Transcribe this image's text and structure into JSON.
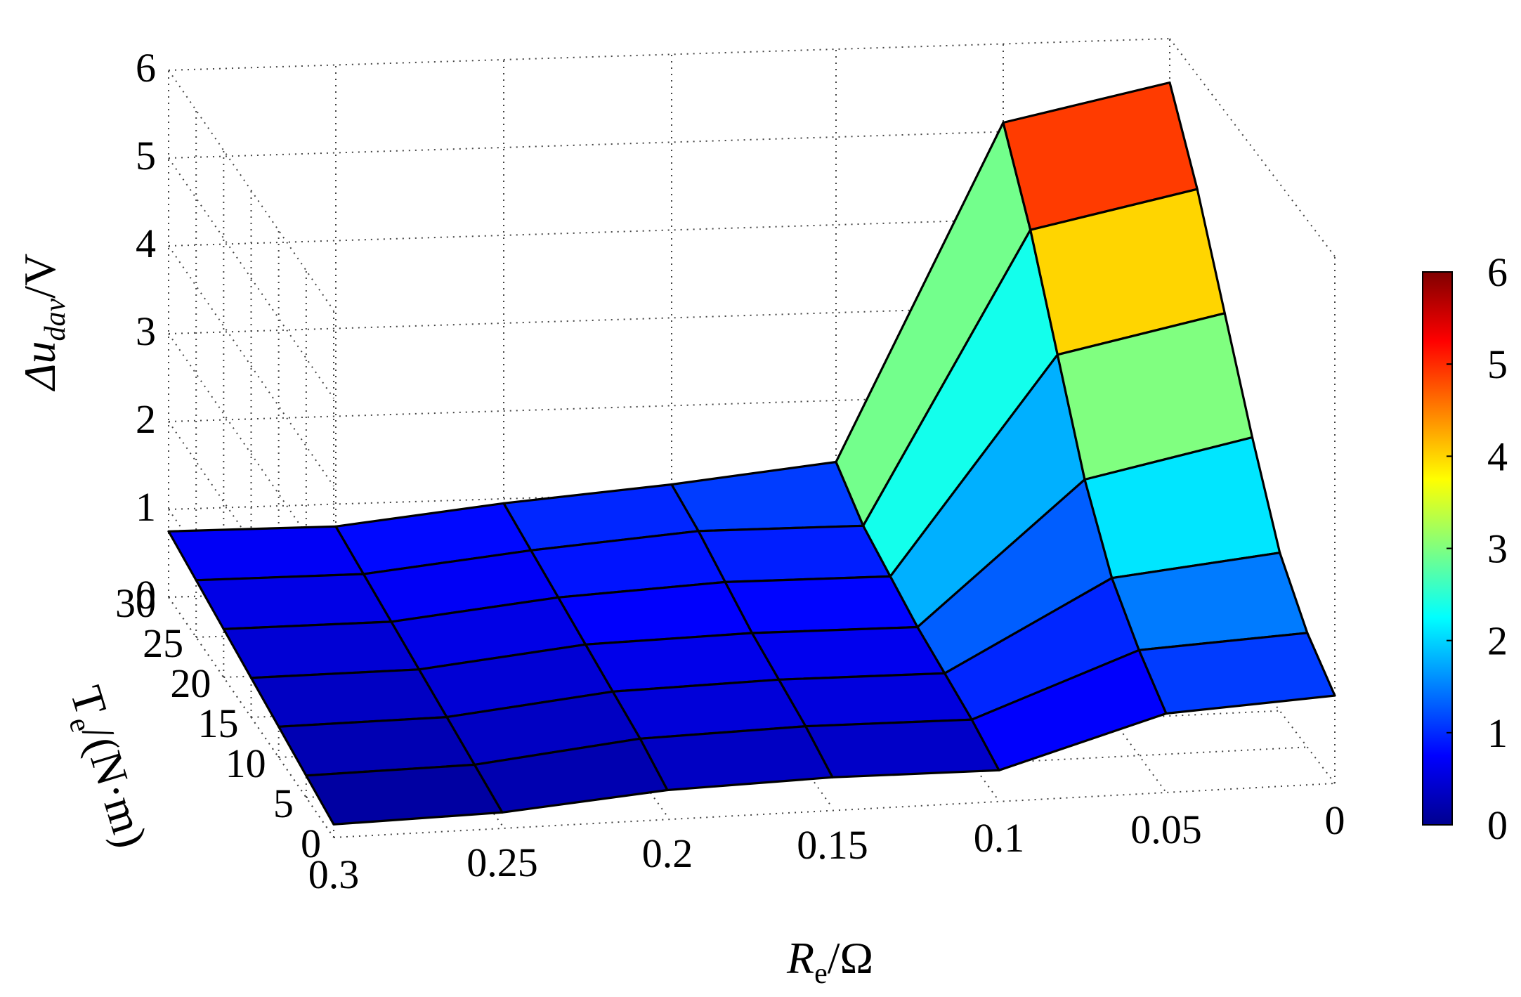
{
  "chart_data": {
    "type": "surface",
    "title": "",
    "x": [
      0.3,
      0.25,
      0.2,
      0.15,
      0.1,
      0.05,
      0
    ],
    "y": [
      30,
      25,
      20,
      15,
      10,
      5,
      0
    ],
    "z": [
      [
        0.75,
        0.75,
        0.95,
        1.1,
        1.3,
        5.1,
        5.5
      ],
      [
        0.65,
        0.65,
        0.85,
        1.0,
        1.0,
        4.3,
        4.7
      ],
      [
        0.55,
        0.55,
        0.75,
        0.85,
        0.85,
        3.3,
        3.7
      ],
      [
        0.45,
        0.45,
        0.65,
        0.7,
        0.7,
        2.3,
        2.7
      ],
      [
        0.35,
        0.35,
        0.55,
        0.6,
        0.6,
        1.6,
        1.8
      ],
      [
        0.25,
        0.25,
        0.45,
        0.5,
        0.5,
        1.2,
        1.3
      ],
      [
        0.15,
        0.15,
        0.3,
        0.35,
        0.35,
        0.9,
        1.0
      ]
    ],
    "xlabel": {
      "main": "R",
      "sub": "e",
      "unit": "/Ω"
    },
    "ylabel": {
      "main": "T",
      "sub": "e",
      "unit": "/(N·m)"
    },
    "zlabel": {
      "main": "Δu",
      "sub": "dav",
      "unit": "/V"
    },
    "x_ticks": [
      "0.3",
      "0.25",
      "0.2",
      "0.15",
      "0.1",
      "0.05",
      "0"
    ],
    "y_ticks": [
      "30",
      "25",
      "20",
      "15",
      "10",
      "5",
      "0"
    ],
    "z_ticks": [
      "0",
      "1",
      "2",
      "3",
      "4",
      "5",
      "6"
    ],
    "zlim": [
      0,
      6
    ],
    "colorbar": {
      "ticks": [
        "0",
        "1",
        "2",
        "3",
        "4",
        "5",
        "6"
      ],
      "range": [
        0,
        6
      ],
      "colormap": "jet"
    },
    "grid": true
  }
}
